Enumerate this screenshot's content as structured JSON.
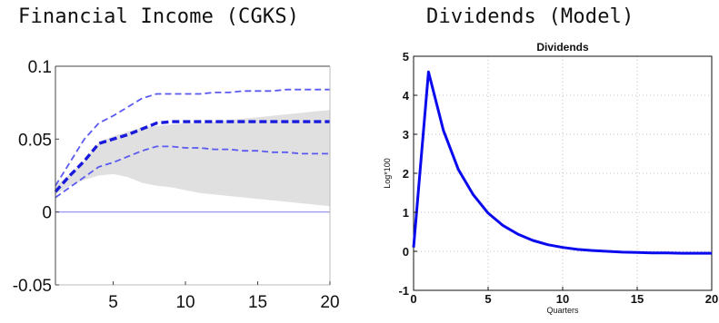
{
  "chart_data": [
    {
      "type": "line",
      "panel_title": "Financial Income (CGKS)",
      "x": [
        1,
        2,
        3,
        4,
        5,
        6,
        7,
        8,
        9,
        10,
        11,
        12,
        13,
        14,
        15,
        16,
        17,
        18,
        19,
        20
      ],
      "xlim": [
        1,
        20
      ],
      "ylim": [
        -0.05,
        0.1
      ],
      "xticks": [
        5,
        10,
        15,
        20
      ],
      "yticks": [
        {
          "value": 0.1,
          "label": "0.1"
        },
        {
          "value": 0.05,
          "label": "0.05"
        },
        {
          "value": 0,
          "label": "0"
        },
        {
          "value": -0.05,
          "label": "-0.05"
        }
      ],
      "grid": false,
      "zero_line": true,
      "shaded_band": {
        "upper": [
          0.018,
          0.026,
          0.035,
          0.048,
          0.052,
          0.055,
          0.058,
          0.059,
          0.06,
          0.061,
          0.061,
          0.062,
          0.063,
          0.064,
          0.065,
          0.066,
          0.067,
          0.068,
          0.069,
          0.07
        ],
        "lower": [
          0.012,
          0.018,
          0.022,
          0.025,
          0.026,
          0.024,
          0.02,
          0.018,
          0.017,
          0.015,
          0.013,
          0.012,
          0.011,
          0.01,
          0.009,
          0.008,
          0.007,
          0.006,
          0.005,
          0.004
        ]
      },
      "series": [
        {
          "role": "estimate",
          "style": "dashed-thick",
          "color": "#1a1adc",
          "values": [
            0.014,
            0.025,
            0.035,
            0.047,
            0.05,
            0.053,
            0.057,
            0.061,
            0.062,
            0.062,
            0.062,
            0.062,
            0.062,
            0.062,
            0.062,
            0.062,
            0.062,
            0.062,
            0.062,
            0.062
          ]
        },
        {
          "role": "upper-band",
          "style": "dashed",
          "color": "#5a5af0",
          "values": [
            0.018,
            0.034,
            0.05,
            0.061,
            0.066,
            0.072,
            0.078,
            0.081,
            0.081,
            0.081,
            0.081,
            0.082,
            0.082,
            0.083,
            0.083,
            0.083,
            0.084,
            0.084,
            0.084,
            0.084
          ]
        },
        {
          "role": "lower-band",
          "style": "dashed",
          "color": "#5a5af0",
          "values": [
            0.01,
            0.017,
            0.024,
            0.031,
            0.034,
            0.038,
            0.042,
            0.045,
            0.045,
            0.044,
            0.044,
            0.043,
            0.043,
            0.042,
            0.042,
            0.041,
            0.041,
            0.04,
            0.04,
            0.04
          ]
        }
      ]
    },
    {
      "type": "line",
      "panel_title": "Dividends (Model)",
      "title": "Dividends",
      "xlabel": "Quarters",
      "ylabel": "Log*100",
      "x": [
        0,
        1,
        2,
        3,
        4,
        5,
        6,
        7,
        8,
        9,
        10,
        11,
        12,
        13,
        14,
        15,
        16,
        17,
        18,
        19,
        20
      ],
      "xlim": [
        0,
        20
      ],
      "ylim": [
        -1,
        5
      ],
      "xticks": [
        0,
        5,
        10,
        15,
        20
      ],
      "yticks": [
        5,
        4,
        3,
        2,
        1,
        0,
        -1
      ],
      "grid": true,
      "series": [
        {
          "role": "response",
          "color": "#0a0aee",
          "values": [
            0.1,
            4.6,
            3.1,
            2.1,
            1.45,
            0.98,
            0.66,
            0.44,
            0.28,
            0.17,
            0.1,
            0.05,
            0.02,
            0.0,
            -0.02,
            -0.03,
            -0.04,
            -0.04,
            -0.05,
            -0.05,
            -0.05
          ]
        }
      ]
    }
  ]
}
